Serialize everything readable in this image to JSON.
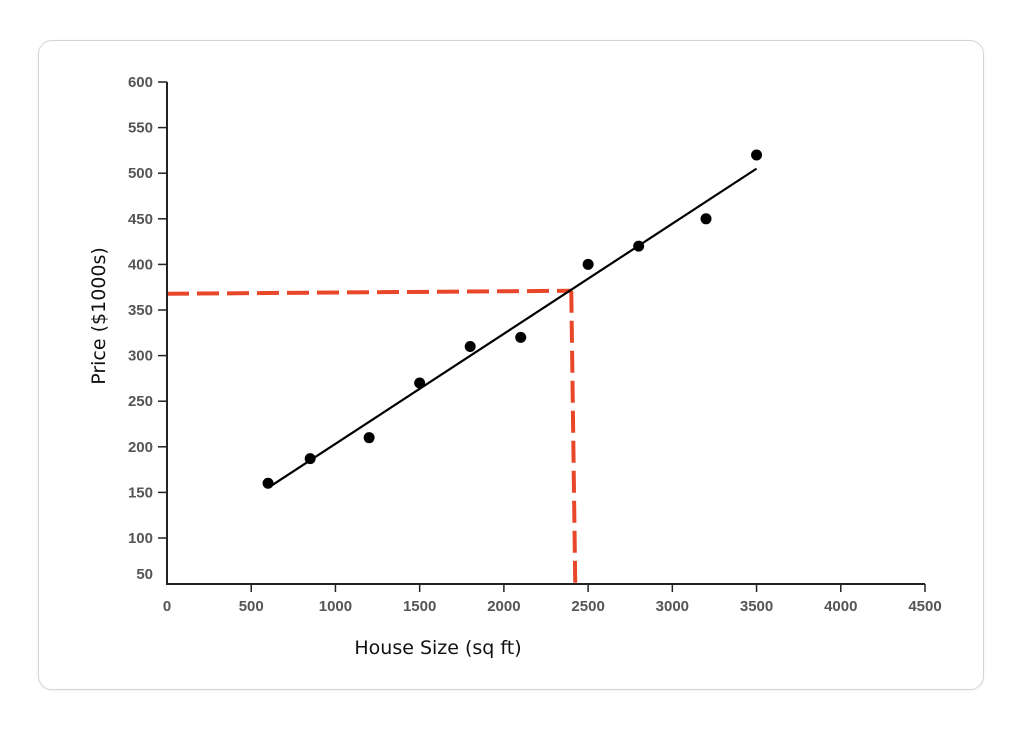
{
  "chart_data": {
    "type": "scatter",
    "title": "",
    "xlabel": "House Size (sq ft)",
    "ylabel": "Price ($1000s)",
    "xlim": [
      0,
      4500
    ],
    "ylim": [
      50,
      600
    ],
    "x_ticks": [
      0,
      500,
      1000,
      1500,
      2000,
      2500,
      3000,
      3500,
      4000,
      4500
    ],
    "y_ticks": [
      50,
      100,
      150,
      200,
      250,
      300,
      350,
      400,
      450,
      500,
      550,
      600
    ],
    "grid": false,
    "legend": "none",
    "series": [
      {
        "points": [
          {
            "x": 600,
            "y": 160
          },
          {
            "x": 850,
            "y": 187
          },
          {
            "x": 1200,
            "y": 210
          },
          {
            "x": 1500,
            "y": 270
          },
          {
            "x": 1800,
            "y": 310
          },
          {
            "x": 2100,
            "y": 320
          },
          {
            "x": 2500,
            "y": 400
          },
          {
            "x": 2800,
            "y": 420
          },
          {
            "x": 3200,
            "y": 450
          },
          {
            "x": 3500,
            "y": 520
          }
        ],
        "color": "#000000"
      }
    ],
    "trend_line": {
      "from": {
        "x": 600,
        "y": 155
      },
      "to": {
        "x": 3500,
        "y": 505
      },
      "color": "#000000"
    },
    "prediction": {
      "x": 2400,
      "y": 370,
      "color": "#e8472a",
      "style": "dashed"
    }
  }
}
